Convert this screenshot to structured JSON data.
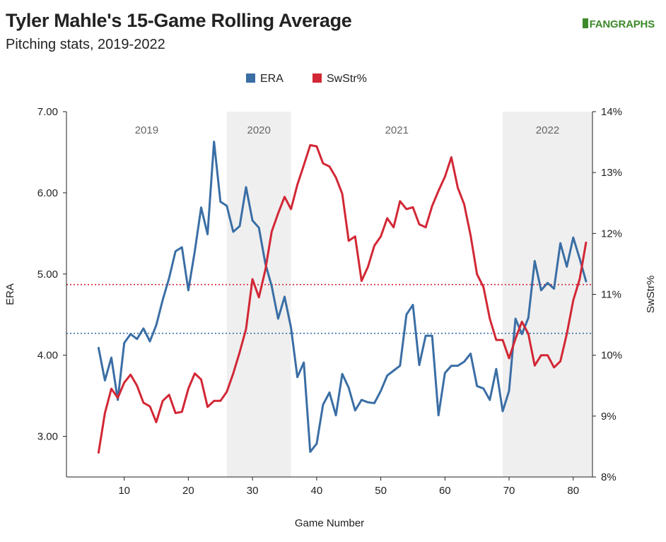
{
  "header": {
    "title": "Tyler Mahle's 15-Game Rolling Average",
    "subtitle": "Pitching stats, 2019-2022",
    "logo": "FANGRAPHS"
  },
  "chart_data": {
    "type": "line",
    "title": "Tyler Mahle's 15-Game Rolling Average",
    "subtitle": "Pitching stats, 2019-2022",
    "xlabel": "Game Number",
    "ylabel": "ERA",
    "y2label": "SwStr%",
    "xlim": [
      1,
      83
    ],
    "ylim": [
      2.5,
      7.0
    ],
    "y2lim": [
      8,
      14
    ],
    "xticks": [
      10,
      20,
      30,
      40,
      50,
      60,
      70,
      80
    ],
    "yticks": [
      "3.00",
      "4.00",
      "5.00",
      "6.00",
      "7.00"
    ],
    "y2ticks": [
      "8%",
      "9%",
      "10%",
      "11%",
      "12%",
      "13%",
      "14%"
    ],
    "legend_position": "top-center",
    "grid": false,
    "colors": {
      "era": "#3a6ea5",
      "swstr": "#d22735",
      "season_shade": "#efefef"
    },
    "seasons": [
      {
        "label": "2019",
        "start": 1,
        "end": 26,
        "shaded": false
      },
      {
        "label": "2020",
        "start": 26,
        "end": 36,
        "shaded": true
      },
      {
        "label": "2021",
        "start": 36,
        "end": 69,
        "shaded": false
      },
      {
        "label": "2022",
        "start": 69,
        "end": 83,
        "shaded": true
      }
    ],
    "reference_lines": [
      {
        "series": "ERA",
        "axis": "left",
        "value": 4.27
      },
      {
        "series": "SwStr%",
        "axis": "right",
        "value": 11.16
      }
    ],
    "x": [
      6,
      7,
      8,
      9,
      10,
      11,
      12,
      13,
      14,
      15,
      16,
      17,
      18,
      19,
      20,
      21,
      22,
      23,
      24,
      25,
      26,
      27,
      28,
      29,
      30,
      31,
      32,
      33,
      34,
      35,
      36,
      37,
      38,
      39,
      40,
      41,
      42,
      43,
      44,
      45,
      46,
      47,
      48,
      49,
      50,
      51,
      52,
      53,
      54,
      55,
      56,
      57,
      58,
      59,
      60,
      61,
      62,
      63,
      64,
      65,
      66,
      67,
      68,
      69,
      70,
      71,
      72,
      73,
      74,
      75,
      76,
      77,
      78,
      79,
      80,
      81,
      82
    ],
    "series": [
      {
        "name": "ERA",
        "axis": "left",
        "values": [
          4.09,
          3.69,
          3.97,
          3.45,
          4.15,
          4.26,
          4.2,
          4.33,
          4.17,
          4.37,
          4.68,
          4.95,
          5.28,
          5.33,
          4.8,
          5.28,
          5.82,
          5.49,
          6.63,
          5.89,
          5.84,
          5.52,
          5.59,
          6.07,
          5.66,
          5.57,
          5.13,
          4.85,
          4.45,
          4.72,
          4.34,
          3.73,
          3.91,
          2.81,
          2.91,
          3.39,
          3.54,
          3.26,
          3.77,
          3.6,
          3.32,
          3.45,
          3.42,
          3.41,
          3.56,
          3.75,
          3.81,
          3.87,
          4.5,
          4.62,
          3.88,
          4.24,
          4.24,
          3.26,
          3.78,
          3.87,
          3.87,
          3.92,
          4.02,
          3.62,
          3.59,
          3.45,
          3.83,
          3.31,
          3.56,
          4.45,
          4.26,
          4.46,
          5.16,
          4.8,
          4.89,
          4.82,
          5.38,
          5.09,
          5.45,
          5.19,
          4.91
        ]
      },
      {
        "name": "SwStr%",
        "axis": "right",
        "values": [
          8.4,
          9.05,
          9.45,
          9.3,
          9.55,
          9.68,
          9.5,
          9.22,
          9.16,
          8.9,
          9.25,
          9.35,
          9.05,
          9.07,
          9.45,
          9.7,
          9.6,
          9.15,
          9.25,
          9.25,
          9.4,
          9.7,
          10.05,
          10.43,
          11.25,
          10.95,
          11.4,
          12.03,
          12.33,
          12.6,
          12.4,
          12.8,
          13.12,
          13.45,
          13.43,
          13.15,
          13.1,
          12.92,
          12.65,
          11.88,
          11.95,
          11.22,
          11.45,
          11.8,
          11.95,
          12.25,
          12.1,
          12.53,
          12.4,
          12.43,
          12.15,
          12.1,
          12.45,
          12.7,
          12.93,
          13.25,
          12.75,
          12.48,
          11.97,
          11.33,
          11.12,
          10.6,
          10.25,
          10.25,
          9.95,
          10.27,
          10.55,
          10.35,
          9.83,
          10.0,
          10.0,
          9.8,
          9.9,
          10.35,
          10.9,
          11.25,
          11.85
        ]
      }
    ]
  }
}
